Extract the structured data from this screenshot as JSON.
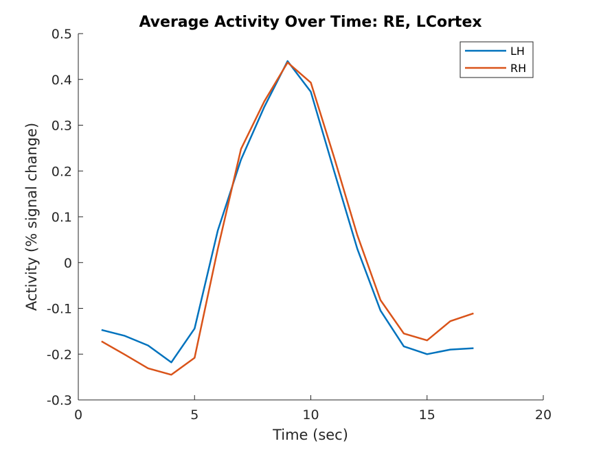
{
  "chart_data": {
    "type": "line",
    "title": "Average Activity Over Time: RE, LCortex",
    "xlabel": "Time (sec)",
    "ylabel": "Activity (% signal change)",
    "xlim": [
      0,
      20
    ],
    "ylim": [
      -0.3,
      0.5
    ],
    "xticks": [
      0,
      5,
      10,
      15,
      20
    ],
    "xtick_labels": [
      "0",
      "5",
      "10",
      "15",
      "20"
    ],
    "yticks": [
      -0.3,
      -0.2,
      -0.1,
      0,
      0.1,
      0.2,
      0.3,
      0.4,
      0.5
    ],
    "ytick_labels": [
      "-0.3",
      "-0.2",
      "-0.1",
      "0",
      "0.1",
      "0.2",
      "0.3",
      "0.4",
      "0.5"
    ],
    "grid": false,
    "legend_position": "top-right",
    "x": [
      1,
      2,
      3,
      4,
      5,
      6,
      7,
      8,
      9,
      10,
      11,
      12,
      13,
      14,
      15,
      16,
      17
    ],
    "series": [
      {
        "name": "LH",
        "color": "#0072BD",
        "values": [
          -0.147,
          -0.16,
          -0.181,
          -0.218,
          -0.144,
          0.07,
          0.225,
          0.34,
          0.44,
          0.373,
          0.2,
          0.03,
          -0.105,
          -0.183,
          -0.2,
          -0.19,
          -0.187
        ]
      },
      {
        "name": "RH",
        "color": "#D95319",
        "values": [
          -0.172,
          -0.201,
          -0.231,
          -0.245,
          -0.208,
          0.03,
          0.248,
          0.352,
          0.437,
          0.393,
          0.23,
          0.06,
          -0.082,
          -0.155,
          -0.17,
          -0.128,
          -0.111
        ]
      }
    ]
  }
}
